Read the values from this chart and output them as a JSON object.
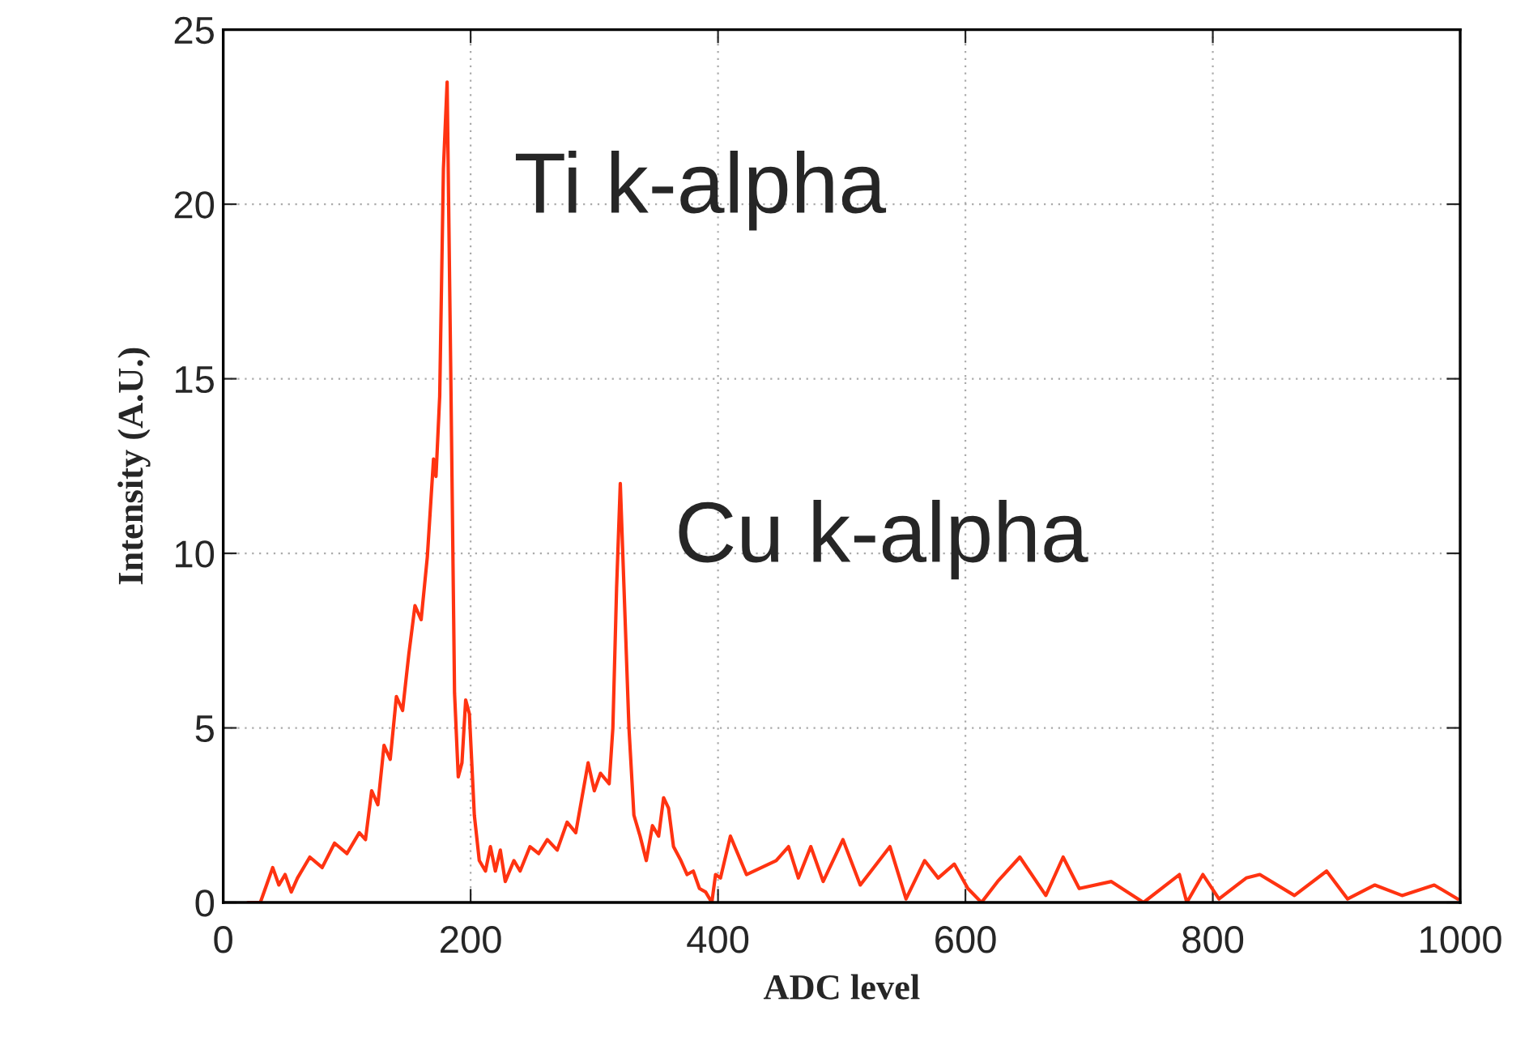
{
  "chart_data": {
    "type": "line",
    "xlabel": "ADC level",
    "ylabel": "Intensity (A.U.)",
    "annotations": [
      "Ti k-alpha",
      "Cu k-alpha"
    ],
    "xlim": [
      0,
      1000
    ],
    "xticks": [
      0,
      200,
      400,
      600,
      800,
      1000
    ],
    "ylim": [
      0,
      25
    ],
    "yticks": [
      0,
      5,
      10,
      15,
      20,
      25
    ],
    "grid": true,
    "legend": false,
    "marker": "none",
    "line_style": "solid",
    "series": [
      {
        "color": "#ff3311",
        "x": [
          20,
          30,
          35,
          40,
          45,
          50,
          55,
          60,
          70,
          80,
          90,
          100,
          110,
          115,
          120,
          125,
          130,
          135,
          140,
          145,
          150,
          155,
          160,
          165,
          170,
          172,
          175,
          178,
          181,
          184,
          187,
          190,
          193,
          196,
          199,
          203,
          207,
          212,
          216,
          220,
          224,
          228,
          235,
          240,
          248,
          255,
          262,
          270,
          278,
          285,
          290,
          295,
          300,
          305,
          312,
          315,
          318,
          321,
          324,
          328,
          332,
          337,
          342,
          347,
          352,
          356,
          360,
          364,
          370,
          375,
          380,
          385,
          390,
          395,
          398,
          402,
          410,
          423,
          447,
          457,
          465,
          475,
          485,
          501,
          515,
          539,
          552,
          567,
          578,
          591,
          602,
          613,
          626,
          644,
          665,
          679,
          692,
          718,
          744,
          773,
          779,
          792,
          805,
          827,
          838,
          866,
          892,
          909,
          931,
          953,
          979,
          998
        ],
        "values": [
          0,
          0,
          0.5,
          1.0,
          0.5,
          0.8,
          0.3,
          0.7,
          1.3,
          1.0,
          1.7,
          1.4,
          2.0,
          1.8,
          3.2,
          2.8,
          4.5,
          4.1,
          5.9,
          5.5,
          7.1,
          8.5,
          8.1,
          9.9,
          12.7,
          12.2,
          14.5,
          21,
          23.5,
          15,
          6,
          3.6,
          4.0,
          5.8,
          5.4,
          2.5,
          1.2,
          0.9,
          1.6,
          0.9,
          1.5,
          0.6,
          1.2,
          0.9,
          1.6,
          1.4,
          1.8,
          1.5,
          2.3,
          2.0,
          3.0,
          4.0,
          3.2,
          3.7,
          3.4,
          5.0,
          9,
          12.0,
          9,
          5.0,
          2.5,
          1.9,
          1.2,
          2.2,
          1.9,
          3.0,
          2.7,
          1.6,
          1.2,
          0.8,
          0.9,
          0.4,
          0.3,
          0.0,
          0.8,
          0.7,
          1.9,
          0.8,
          1.2,
          1.6,
          0.7,
          1.6,
          0.6,
          1.8,
          0.5,
          1.6,
          0.1,
          1.2,
          0.7,
          1.1,
          0.4,
          0.0,
          0.6,
          1.3,
          0.2,
          1.3,
          0.4,
          0.6,
          0.0,
          0.8,
          0.0,
          0.8,
          0.1,
          0.7,
          0.8,
          0.2,
          0.9,
          0.1,
          0.5,
          0.2,
          0.5,
          0.1
        ]
      }
    ]
  }
}
